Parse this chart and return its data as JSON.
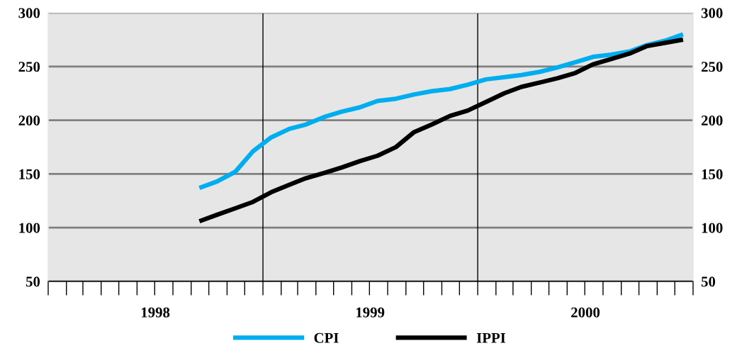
{
  "chart_data": {
    "type": "line",
    "x": [
      "1998-09-15",
      "1998-10-15",
      "1998-11-15",
      "1998-12-15",
      "1999-01-15",
      "1999-02-15",
      "1999-03-15",
      "1999-04-15",
      "1999-05-15",
      "1999-06-15",
      "1999-07-15",
      "1999-08-15",
      "1999-09-15",
      "1999-10-15",
      "1999-11-15",
      "1999-12-15",
      "2000-01-15",
      "2000-02-15",
      "2000-03-15",
      "2000-04-15",
      "2000-05-15",
      "2000-06-15",
      "2000-07-15",
      "2000-08-15",
      "2000-09-15",
      "2000-10-15",
      "2000-11-15",
      "2000-12-15"
    ],
    "series": [
      {
        "name": "CPI",
        "color": "#00aeef",
        "values": [
          137,
          143,
          152,
          171,
          184,
          192,
          196,
          203,
          208,
          212,
          218,
          220,
          224,
          227,
          229,
          233,
          238,
          240,
          242,
          245,
          249,
          254,
          259,
          261,
          264,
          270,
          274,
          280
        ]
      },
      {
        "name": "IPPI",
        "color": "#000000",
        "values": [
          106,
          112,
          118,
          124,
          133,
          140,
          146,
          151,
          156,
          162,
          167,
          175,
          189,
          196,
          204,
          209,
          217,
          225,
          231,
          235,
          239,
          244,
          252,
          257,
          262,
          269,
          272,
          275
        ]
      }
    ],
    "xlim": [
      "1998-01-01",
      "2001-01-01"
    ],
    "xticks": [
      {
        "value": "1998-07-02",
        "label": "1998"
      },
      {
        "value": "1999-07-02",
        "label": "1999"
      },
      {
        "value": "2000-07-02",
        "label": "2000"
      }
    ],
    "ylim": [
      50,
      300
    ],
    "yticks": [
      50,
      100,
      150,
      200,
      250,
      300
    ],
    "y2lim": [
      50,
      300
    ],
    "y2ticks": [
      50,
      100,
      150,
      200,
      250,
      300
    ],
    "grid": "y",
    "legend": "bottom",
    "marker": "none",
    "line_style": "solid",
    "ref_lines": [
      {
        "axis": "x",
        "value": "1999-01-01",
        "color": "#000000"
      },
      {
        "axis": "x",
        "value": "2000-01-01",
        "color": "#000000"
      }
    ]
  }
}
